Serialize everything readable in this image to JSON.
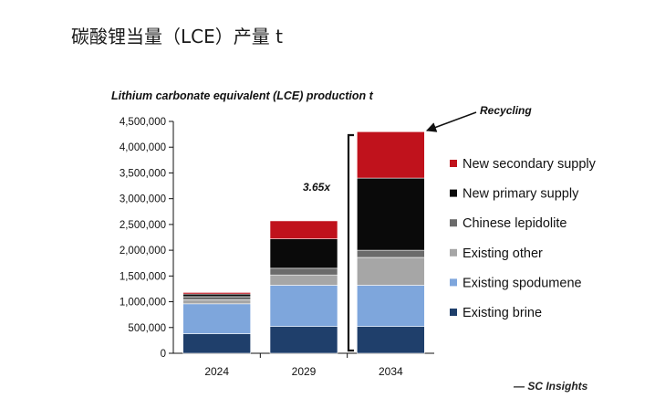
{
  "page": {
    "heading": "碳酸锂当量（LCE）产量 t"
  },
  "chart_data": {
    "type": "bar",
    "stacked": true,
    "title": "Lithium carbonate equivalent (LCE) production t",
    "categories": [
      "2024",
      "2029",
      "2034"
    ],
    "ylim": [
      0,
      4500000
    ],
    "yticks": [
      "0",
      "500,000",
      "1,000,000",
      "1,500,000",
      "2,000,000",
      "2,500,000",
      "3,000,000",
      "3,500,000",
      "4,000,000",
      "4,500,000"
    ],
    "ytick_values": [
      0,
      500000,
      1000000,
      1500000,
      2000000,
      2500000,
      3000000,
      3500000,
      4000000,
      4500000
    ],
    "grid": false,
    "legend_position": "right",
    "series": [
      {
        "name": "Existing brine",
        "color": "#1f3f6b",
        "values": [
          380000,
          520000,
          520000
        ]
      },
      {
        "name": "Existing spodumene",
        "color": "#7ea6dc",
        "values": [
          580000,
          800000,
          800000
        ]
      },
      {
        "name": "Existing other",
        "color": "#a6a6a6",
        "values": [
          80000,
          200000,
          540000
        ]
      },
      {
        "name": "Chinese lepidolite",
        "color": "#6b6b6b",
        "values": [
          60000,
          130000,
          140000
        ]
      },
      {
        "name": "New primary supply",
        "color": "#0a0a0a",
        "values": [
          50000,
          570000,
          1400000
        ]
      },
      {
        "name": "New secondary supply",
        "color": "#c0121c",
        "values": [
          30000,
          350000,
          900000
        ]
      }
    ],
    "annotations": {
      "multiplier": "3.65x",
      "recycling": "Recycling"
    },
    "source": "— SC Insights"
  }
}
